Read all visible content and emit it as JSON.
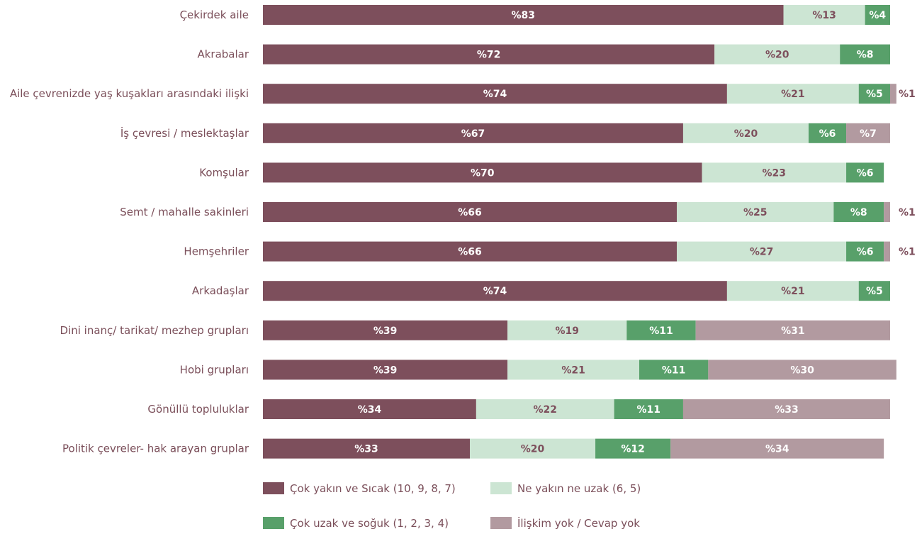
{
  "chart_data": {
    "type": "bar",
    "orientation": "horizontal",
    "stacked": true,
    "categories": [
      "Çekirdek aile",
      "Akrabalar",
      "Aile çevrenizde yaş kuşakları arasındaki ilişki",
      "İş çevresi / meslektaşlar",
      "Komşular",
      "Semt / mahalle sakinleri",
      "Hemşehriler",
      "Arkadaşlar",
      "Dini inanç/ tarikat/ mezhep grupları",
      "Hobi grupları",
      "Gönüllü topluluklar",
      "Politik çevreler- hak arayan gruplar"
    ],
    "series": [
      {
        "name": "Çok yakın ve Sıcak (10, 9, 8, 7)",
        "color": "#7d4f5c",
        "label_color": "#ffffff",
        "values": [
          83,
          72,
          74,
          67,
          70,
          66,
          66,
          74,
          39,
          39,
          34,
          33
        ]
      },
      {
        "name": "Ne yakın ne uzak (6, 5)",
        "color": "#cce5d3",
        "label_color": "#7d4f5c",
        "values": [
          13,
          20,
          21,
          20,
          23,
          25,
          27,
          21,
          19,
          21,
          22,
          20
        ]
      },
      {
        "name": "Çok uzak ve soğuk (1, 2, 3, 4)",
        "color": "#58a06a",
        "label_color": "#ffffff",
        "values": [
          4,
          8,
          5,
          6,
          6,
          8,
          6,
          5,
          11,
          11,
          11,
          12
        ]
      },
      {
        "name": "İlişkim yok / Cevap yok",
        "color": "#b29aa0",
        "label_color": "#ffffff",
        "values": [
          0,
          0,
          1,
          7,
          0,
          1,
          1,
          0,
          31,
          30,
          33,
          34
        ]
      }
    ],
    "value_prefix": "%",
    "xlim": [
      0,
      100
    ],
    "grid": false,
    "legend": "bottom"
  }
}
